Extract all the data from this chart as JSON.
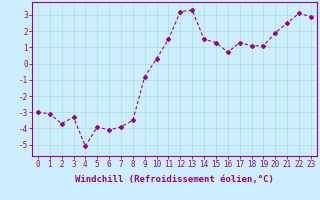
{
  "x": [
    0,
    1,
    2,
    3,
    4,
    5,
    6,
    7,
    8,
    9,
    10,
    11,
    12,
    13,
    14,
    15,
    16,
    17,
    18,
    19,
    20,
    21,
    22,
    23
  ],
  "y": [
    -3.0,
    -3.1,
    -3.7,
    -3.3,
    -5.1,
    -3.9,
    -4.1,
    -3.9,
    -3.5,
    -0.8,
    0.3,
    1.5,
    3.2,
    3.3,
    1.5,
    1.3,
    0.7,
    1.3,
    1.1,
    1.1,
    1.9,
    2.5,
    3.1,
    2.9
  ],
  "line_color": "#990099",
  "marker": "D",
  "markersize": 2.0,
  "linewidth": 0.8,
  "background_color": "#cceeff",
  "grid_color": "#aadddd",
  "xlabel": "Windchill (Refroidissement éolien,°C)",
  "ylabel": "",
  "title": "",
  "xlim": [
    -0.5,
    23.5
  ],
  "ylim": [
    -5.7,
    3.8
  ],
  "yticks": [
    -5,
    -4,
    -3,
    -2,
    -1,
    0,
    1,
    2,
    3
  ],
  "xticks": [
    0,
    1,
    2,
    3,
    4,
    5,
    6,
    7,
    8,
    9,
    10,
    11,
    12,
    13,
    14,
    15,
    16,
    17,
    18,
    19,
    20,
    21,
    22,
    23
  ],
  "tick_fontsize": 5.5,
  "xlabel_fontsize": 6.5,
  "tick_color": "#990099",
  "spine_color": "#990099"
}
